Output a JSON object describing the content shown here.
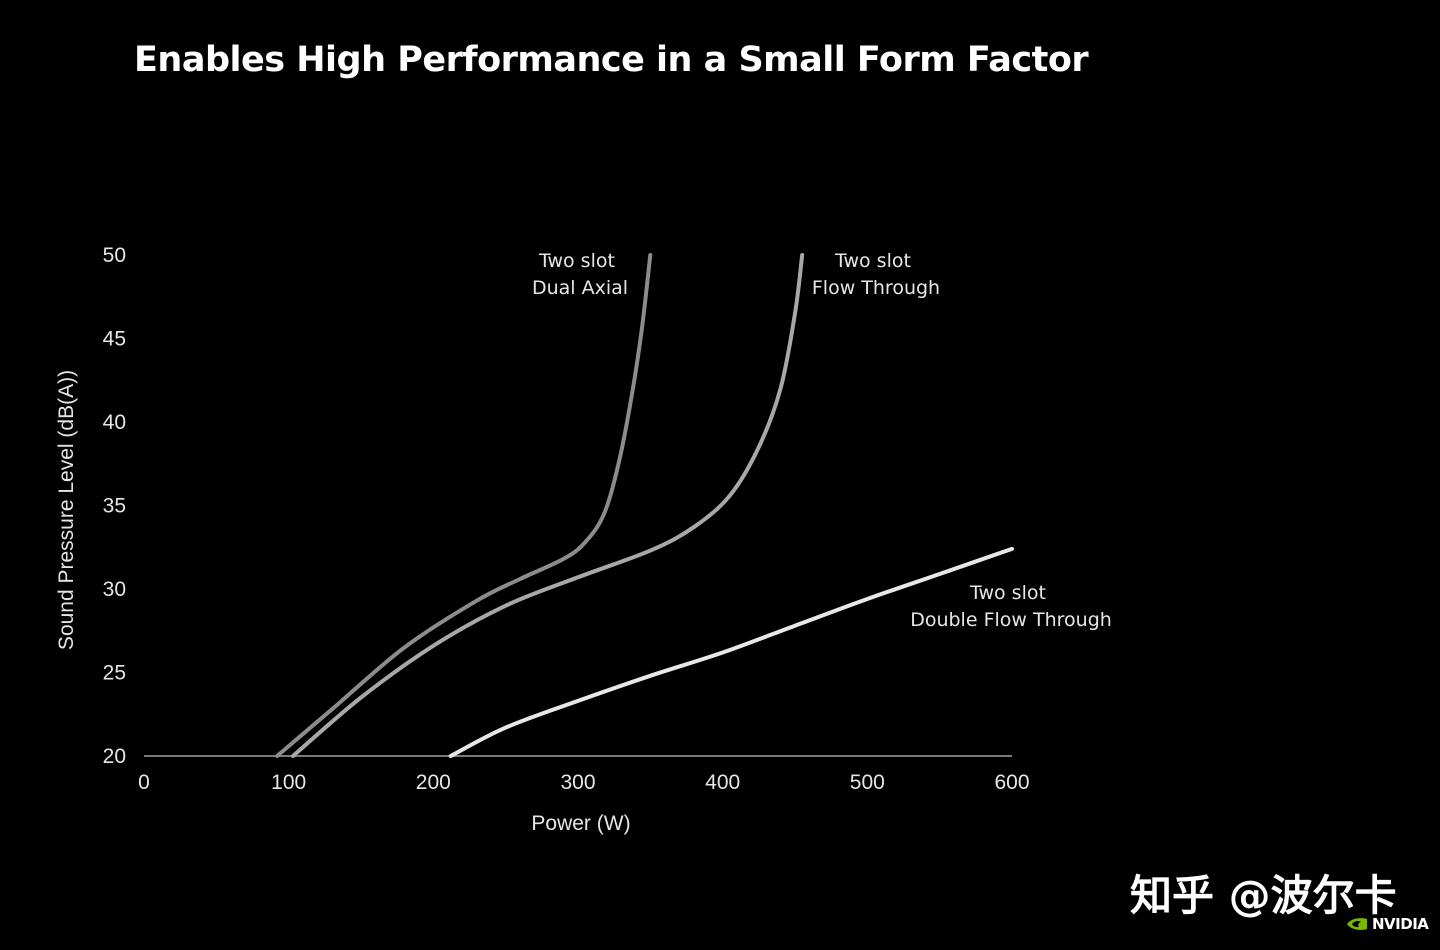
{
  "slide": {
    "title": "Enables High Performance in a Small Form Factor",
    "watermark": "知乎 @波尔卡",
    "brand": "NVIDIA"
  },
  "chart_data": {
    "type": "line",
    "xlabel": "Power (W)",
    "ylabel": "Sound Pressure Level (dB(A))",
    "xlim": [
      0,
      600
    ],
    "ylim": [
      20,
      50
    ],
    "xticks": [
      0,
      100,
      200,
      300,
      400,
      500,
      600
    ],
    "yticks": [
      20,
      25,
      30,
      35,
      40,
      45,
      50
    ],
    "grid": false,
    "legend": "none (series labelled directly)",
    "colors": {
      "background": "#000000",
      "axis": "#7a7a7a",
      "text": "#e6e6e6",
      "Two slot Dual Axial": "#8c8c8c",
      "Two slot Flow Through": "#a8a8a8",
      "Two slot Double Flow Through": "#e8e8e8"
    },
    "series": [
      {
        "label_lines": [
          "Two slot",
          "Dual Axial"
        ],
        "points": [
          [
            92,
            20
          ],
          [
            130,
            22.8
          ],
          [
            180,
            26.5
          ],
          [
            230,
            29.3
          ],
          [
            260,
            30.6
          ],
          [
            290,
            31.8
          ],
          [
            305,
            32.8
          ],
          [
            318,
            34.5
          ],
          [
            328,
            37.5
          ],
          [
            337,
            41.5
          ],
          [
            344,
            45.5
          ],
          [
            350,
            50
          ]
        ]
      },
      {
        "label_lines": [
          "Two slot",
          "Flow Through"
        ],
        "points": [
          [
            103,
            20
          ],
          [
            150,
            23.5
          ],
          [
            200,
            26.6
          ],
          [
            250,
            29.0
          ],
          [
            300,
            30.7
          ],
          [
            350,
            32.3
          ],
          [
            380,
            33.7
          ],
          [
            405,
            35.6
          ],
          [
            425,
            38.5
          ],
          [
            440,
            42
          ],
          [
            450,
            46.5
          ],
          [
            455,
            50
          ]
        ]
      },
      {
        "label_lines": [
          "Two slot",
          "Double Flow Through"
        ],
        "points": [
          [
            212,
            20
          ],
          [
            250,
            21.7
          ],
          [
            300,
            23.3
          ],
          [
            350,
            24.8
          ],
          [
            400,
            26.2
          ],
          [
            450,
            27.8
          ],
          [
            500,
            29.4
          ],
          [
            550,
            30.9
          ],
          [
            600,
            32.4
          ]
        ]
      }
    ]
  }
}
